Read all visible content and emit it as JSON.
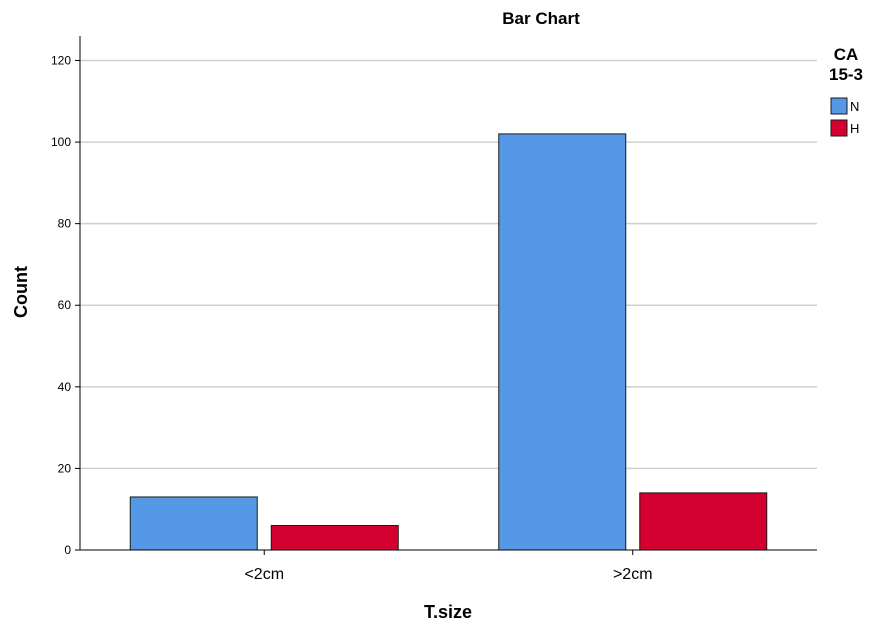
{
  "chart_data": {
    "type": "bar",
    "title": "Bar Chart",
    "xlabel": "T.size",
    "ylabel": "Count",
    "categories": [
      "<2cm",
      ">2cm"
    ],
    "series": [
      {
        "name": "N",
        "values": [
          13,
          102
        ],
        "color": "#5599e6"
      },
      {
        "name": "H",
        "values": [
          6,
          14
        ],
        "color": "#d40030"
      }
    ],
    "ylim": [
      0,
      126
    ],
    "yticks": [
      0,
      20,
      40,
      60,
      80,
      100,
      120
    ],
    "grid": true,
    "legend": {
      "title_lines": [
        "CA",
        "15-3"
      ],
      "placement": "top-right"
    }
  }
}
